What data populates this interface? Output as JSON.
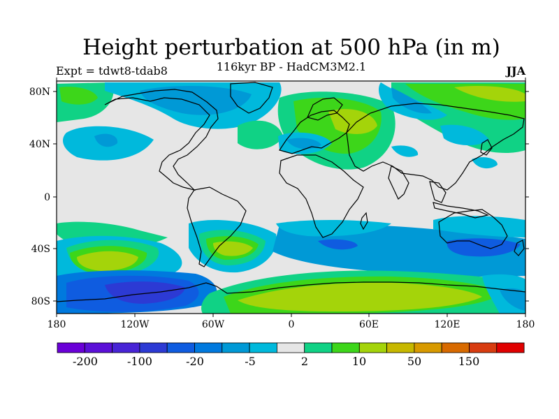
{
  "title": "Height perturbation at 500 hPa (in m)",
  "left_label": "Expt = tdwt8-tdab8",
  "center_label": "116kyr BP - HadCM3M2.1",
  "right_label": "JJA",
  "axes": {
    "lat_ticks": [
      "80N",
      "40N",
      "0",
      "40S",
      "80S"
    ],
    "lon_ticks": [
      "180",
      "120W",
      "60W",
      "0",
      "60E",
      "120E",
      "180"
    ]
  },
  "colorbar": {
    "colors": [
      "#6a00d8",
      "#5b10d8",
      "#4824d6",
      "#2c3ad4",
      "#0f5ce0",
      "#0079de",
      "#0099d6",
      "#00b9dc",
      "#e6e6e6",
      "#10d285",
      "#3dd61a",
      "#a4d40a",
      "#c7b800",
      "#d89a00",
      "#d86a00",
      "#d83c10",
      "#e00000"
    ],
    "labels": [
      "-200",
      "-100",
      "-20",
      "-5",
      "2",
      "10",
      "50",
      "150"
    ]
  },
  "palette": {
    "background": "#e6e6e6",
    "neg_weak": "#00b9dc",
    "neg_mid": "#0099d6",
    "neg_strong": "#0f5ce0",
    "neg_strongest": "#2c3ad4",
    "pos_weak": "#10d285",
    "pos_mid": "#3dd61a",
    "pos_strong": "#a4d40a",
    "pos_strongest": "#c7b800"
  }
}
